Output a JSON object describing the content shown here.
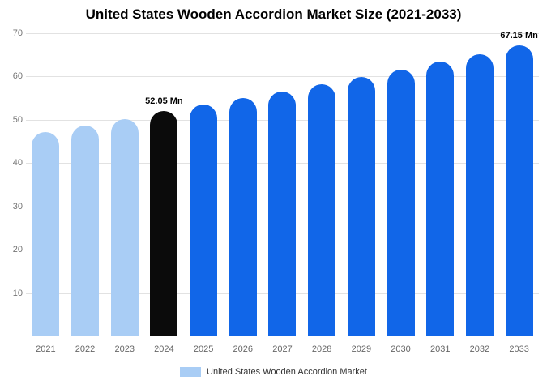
{
  "chart_data": {
    "type": "bar",
    "title": "United States Wooden Accordion Market Size (2021-2033)",
    "categories": [
      "2021",
      "2022",
      "2023",
      "2024",
      "2025",
      "2026",
      "2027",
      "2028",
      "2029",
      "2030",
      "2031",
      "2032",
      "2033"
    ],
    "values": [
      47.2,
      48.7,
      50.2,
      52.05,
      53.5,
      55.0,
      56.6,
      58.2,
      59.9,
      61.6,
      63.4,
      65.2,
      67.15
    ],
    "bar_colors": [
      "#a9cdf5",
      "#a9cdf5",
      "#a9cdf5",
      "#0b0b0b",
      "#1166e8",
      "#1166e8",
      "#1166e8",
      "#1166e8",
      "#1166e8",
      "#1166e8",
      "#1166e8",
      "#1166e8",
      "#1166e8"
    ],
    "value_labels": [
      "",
      "",
      "",
      "52.05 Mn",
      "",
      "",
      "",
      "",
      "",
      "",
      "",
      "",
      "67.15 Mn"
    ],
    "xlabel": "",
    "ylabel": "",
    "ylim": [
      0,
      70
    ],
    "y_ticks": [
      10,
      20,
      30,
      40,
      50,
      60,
      70
    ],
    "grid": "horizontal",
    "legend_position": "bottom",
    "legend": {
      "label": "United States Wooden Accordion Market",
      "swatch_color": "#a9cdf5"
    },
    "colors": {
      "historical": "#a9cdf5",
      "base_year": "#0b0b0b",
      "forecast": "#1166e8",
      "gridline": "#e2e2e2",
      "axis_text": "#757575"
    }
  }
}
